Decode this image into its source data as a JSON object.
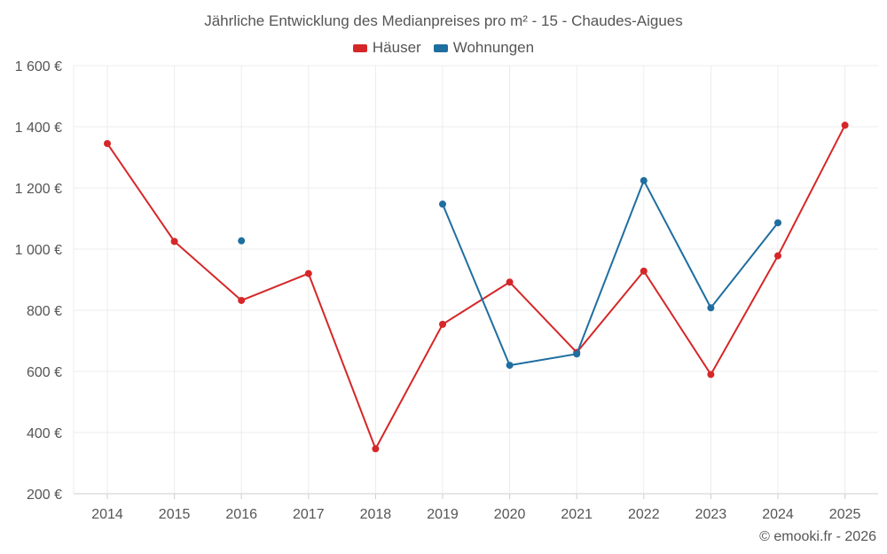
{
  "chart_data": {
    "type": "line",
    "title": "Jährliche Entwicklung des Medianpreises pro m² - 15 - Chaudes-Aigues",
    "xlabel": "",
    "ylabel": "",
    "categories": [
      "2014",
      "2015",
      "2016",
      "2017",
      "2018",
      "2019",
      "2020",
      "2021",
      "2022",
      "2023",
      "2024",
      "2025"
    ],
    "ylim": [
      200,
      1600
    ],
    "yticks": [
      200,
      400,
      600,
      800,
      1000,
      1200,
      1400,
      1600
    ],
    "ytick_labels": [
      "200 €",
      "400 €",
      "600 €",
      "800 €",
      "1 000 €",
      "1 200 €",
      "1 400 €",
      "1 600 €"
    ],
    "grid": true,
    "legend_position": "top-center",
    "series": [
      {
        "name": "Häuser",
        "color": "#d62728",
        "values": [
          1345,
          1025,
          832,
          920,
          347,
          754,
          892,
          662,
          928,
          590,
          978,
          1405
        ]
      },
      {
        "name": "Wohnungen",
        "color": "#1f6ea0",
        "values": [
          null,
          null,
          1027,
          null,
          null,
          1147,
          620,
          657,
          1224,
          808,
          1086,
          null
        ]
      }
    ],
    "credit": "© emooki.fr - 2026"
  }
}
